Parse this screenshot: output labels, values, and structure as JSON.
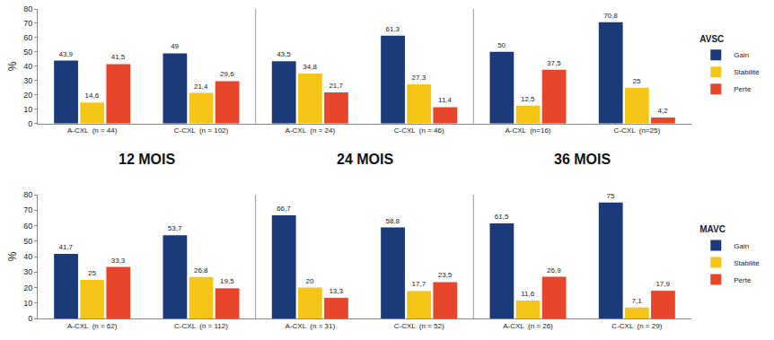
{
  "chart_data": [
    {
      "type": "bar",
      "title": "AVSC",
      "y_label": "%",
      "annotations": [
        "12 MOIS",
        "24 MOIS",
        "36 MOIS"
      ],
      "categories": [
        "A-CXL  (n = 44)",
        "C-CXL  (n = 102)",
        "A-CXL  (n = 24)",
        "C-CXL  (n = 46)",
        "A-CXL  (n=16)",
        "C-CXL  (n=25)"
      ],
      "series": [
        {
          "name": "Gain",
          "color": "#1b3a7a",
          "values": [
            43.9,
            49,
            43.5,
            61.3,
            50,
            70.8
          ],
          "value_labels": [
            "43,9",
            "49",
            "43,5",
            "61,3",
            "50",
            "70,8"
          ]
        },
        {
          "name": "Stabilité",
          "color": "#f5c518",
          "values": [
            14.6,
            21.4,
            34.8,
            27.3,
            12.5,
            25
          ],
          "value_labels": [
            "14,6",
            "21,4",
            "34,8",
            "27,3",
            "12,5",
            "25"
          ]
        },
        {
          "name": "Perte",
          "color": "#e8462b",
          "values": [
            41.5,
            29.6,
            21.7,
            11.4,
            37.5,
            4.2
          ],
          "value_labels": [
            "41,5",
            "29,6",
            "21,7",
            "11,4",
            "37,5",
            "4,2"
          ]
        }
      ],
      "ylim": [
        0,
        80
      ],
      "yticks": [
        0,
        10,
        20,
        30,
        40,
        50,
        60,
        70,
        80
      ],
      "grid": false,
      "data_labels": true,
      "legend": "right"
    },
    {
      "type": "bar",
      "title": "MAVC",
      "y_label": "%",
      "categories": [
        "A-CXL  (n = 62)",
        "C-CXL  (n = 112)",
        "A-CXL  (n = 31)",
        "C-CXL  (n = 52)",
        "A-CXL  (n = 26)",
        "C-CXL  (n = 29)"
      ],
      "series": [
        {
          "name": "Gain",
          "color": "#1b3a7a",
          "values": [
            41.7,
            53.7,
            66.7,
            58.8,
            61.5,
            75
          ],
          "value_labels": [
            "41,7",
            "53,7",
            "66,7",
            "58,8",
            "61,5",
            "75"
          ]
        },
        {
          "name": "Stabilité",
          "color": "#f5c518",
          "values": [
            25,
            26.8,
            20,
            17.7,
            11.6,
            7.1
          ],
          "value_labels": [
            "25",
            "26,8",
            "20",
            "17,7",
            "11,6",
            "7,1"
          ]
        },
        {
          "name": "Perte",
          "color": "#e8462b",
          "values": [
            33.3,
            19.5,
            13.3,
            23.5,
            26.9,
            17.9
          ],
          "value_labels": [
            "33,3",
            "19,5",
            "13,3",
            "23,5",
            "26,9",
            "17,9"
          ]
        }
      ],
      "ylim": [
        0,
        80
      ],
      "yticks": [
        0,
        10,
        20,
        30,
        40,
        50,
        60,
        70,
        80
      ],
      "grid": false,
      "data_labels": true,
      "legend": "right"
    }
  ]
}
